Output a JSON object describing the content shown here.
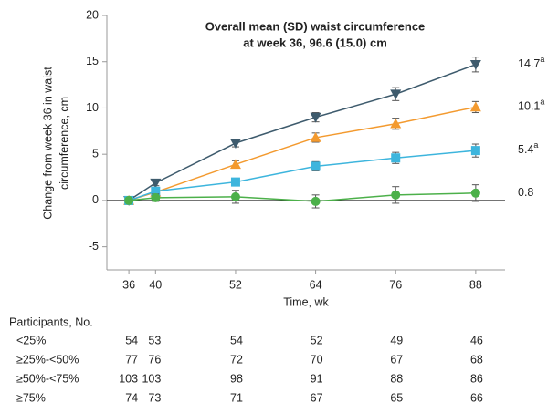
{
  "chart_data": {
    "type": "line",
    "title": [
      "Overall mean (SD) waist circumference",
      "at week 36, 96.6 (15.0) cm"
    ],
    "ylabel": [
      "Change from week 36 in waist",
      "circumference, cm"
    ],
    "xlabel": "Time, wk",
    "x": [
      36,
      40,
      52,
      64,
      76,
      88
    ],
    "xlim": [
      32.7,
      92.4
    ],
    "xticks": [
      36,
      40,
      52,
      64,
      76,
      88
    ],
    "ylim": [
      -7.5,
      20
    ],
    "yticks": [
      -5,
      0,
      5,
      10,
      15,
      20
    ],
    "series": [
      {
        "color": "#3e5b6d",
        "marker": "triangle-down",
        "values": [
          0,
          1.9,
          6.2,
          9.0,
          11.5,
          14.7
        ],
        "errors": [
          0.2,
          0.3,
          0.4,
          0.5,
          0.7,
          0.8
        ],
        "value_labels": [
          null,
          null,
          null,
          null,
          null,
          "14.7"
        ],
        "label_superscript": "a"
      },
      {
        "color": "#f39a2f",
        "marker": "triangle-up",
        "values": [
          0,
          0.9,
          3.9,
          6.8,
          8.3,
          10.1
        ],
        "errors": [
          0.2,
          0.3,
          0.4,
          0.5,
          0.6,
          0.6
        ],
        "value_labels": [
          null,
          null,
          null,
          null,
          null,
          "10.1"
        ],
        "label_superscript": "a"
      },
      {
        "color": "#3db5dd",
        "marker": "square",
        "values": [
          0,
          1.0,
          2.0,
          3.7,
          4.6,
          5.4
        ],
        "errors": [
          0.2,
          0.3,
          0.4,
          0.5,
          0.6,
          0.7
        ],
        "value_labels": [
          null,
          null,
          null,
          null,
          null,
          "5.4"
        ],
        "label_superscript": "a"
      },
      {
        "color": "#4cb04a",
        "marker": "circle",
        "values": [
          0,
          0.3,
          0.4,
          -0.1,
          0.6,
          0.8
        ],
        "errors": [
          0.2,
          0.4,
          0.7,
          0.7,
          0.9,
          0.9
        ],
        "value_labels": [
          null,
          null,
          null,
          null,
          null,
          "0.8"
        ]
      }
    ],
    "table": {
      "title": "Participants, No.",
      "rows": [
        {
          "label": "<25%",
          "counts": [
            54,
            53,
            54,
            52,
            49,
            46
          ]
        },
        {
          "label": "≥25%-<50%",
          "counts": [
            77,
            76,
            72,
            70,
            67,
            68
          ]
        },
        {
          "label": "≥50%-<75%",
          "counts": [
            103,
            103,
            98,
            91,
            88,
            86
          ]
        },
        {
          "label": "≥75%",
          "counts": [
            74,
            73,
            71,
            67,
            65,
            66
          ]
        }
      ]
    }
  }
}
